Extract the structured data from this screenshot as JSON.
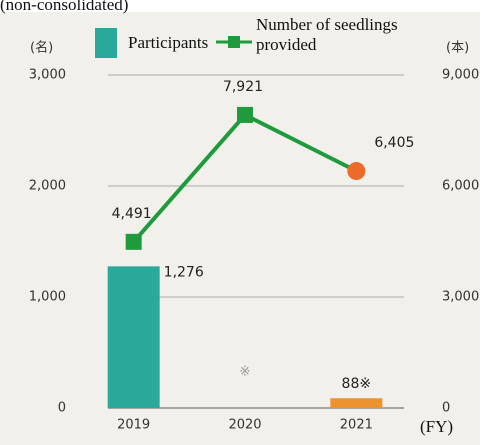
{
  "chart_data": {
    "type": "bar_line",
    "subtitle": "(non-consolidated)",
    "y_unit": "(名)",
    "y2_unit": "(本)",
    "x_unit": "(FY)",
    "categories": [
      "2019",
      "2020",
      "2021"
    ],
    "series": [
      {
        "name": "Participants",
        "type": "bar",
        "color": "#2aa99b",
        "colors": [
          "#2aa99b",
          null,
          "#ec9330"
        ],
        "values": [
          1276,
          null,
          88
        ],
        "value_labels": [
          "1,276",
          "※",
          "88※"
        ]
      },
      {
        "name": "Number of seedlings provided",
        "type": "line",
        "axis": "y2",
        "color": "#1f9a3c",
        "marker_colors": [
          "#1f9a3c",
          "#1f9a3c",
          "#ec6a2a"
        ],
        "values": [
          4491,
          7921,
          6405
        ],
        "value_labels": [
          "4,491",
          "7,921",
          "6,405"
        ]
      }
    ],
    "ylim": [
      0,
      3000
    ],
    "yticks": [
      0,
      {
        "value": 1000,
        "label": "1,000"
      },
      {
        "value": 2000,
        "label": "2,000"
      },
      {
        "value": 3000,
        "label": "3,000"
      }
    ],
    "y2lim": [
      0,
      9000
    ],
    "y2ticks": [
      0,
      {
        "value": 3000,
        "label": "3,000"
      },
      {
        "value": 6000,
        "label": "6,000"
      },
      {
        "value": 9000,
        "label": "9,000"
      }
    ],
    "grid": true
  }
}
